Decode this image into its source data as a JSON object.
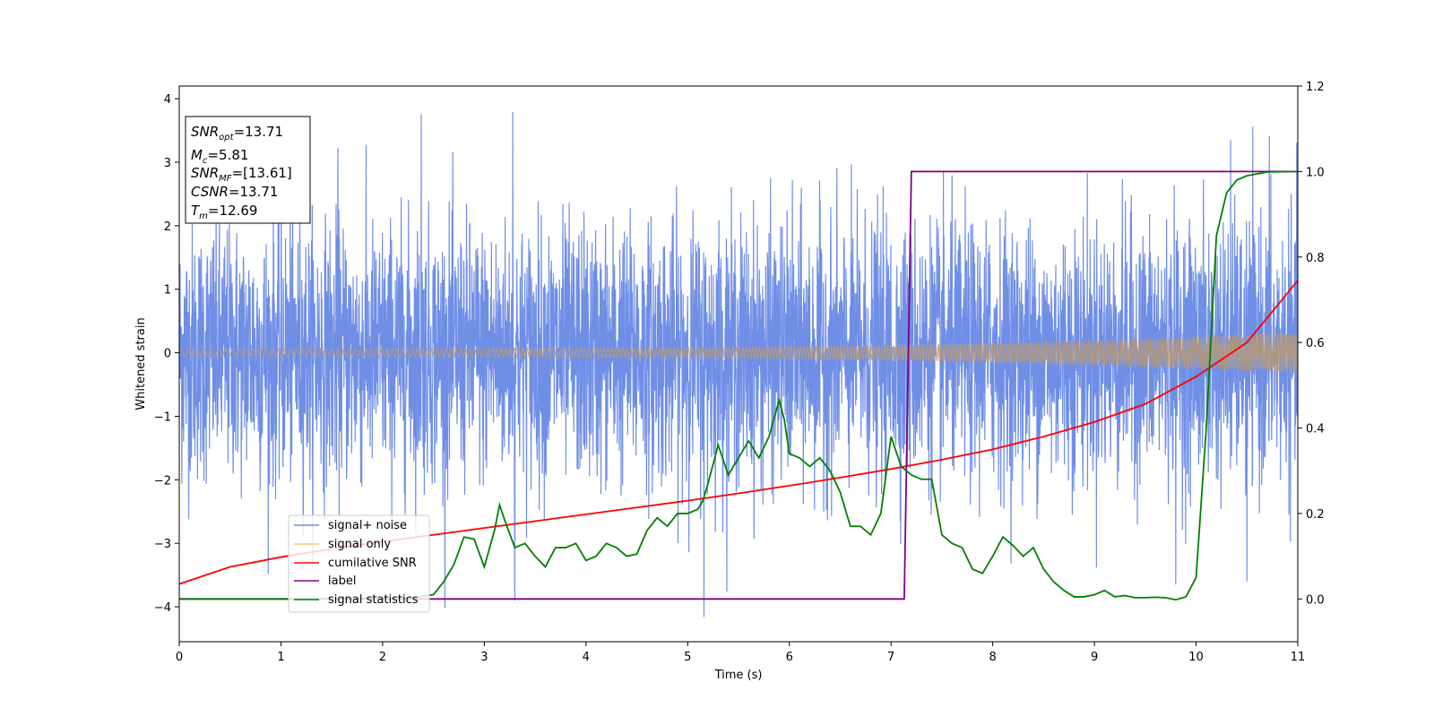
{
  "chart_data": {
    "type": "line",
    "xlabel": "Time (s)",
    "ylabel": "Whitened strain",
    "xlim": [
      0,
      11
    ],
    "ylim": [
      -4.55,
      4.2
    ],
    "y2lim": [
      -0.1,
      1.2
    ],
    "x_ticks": [
      "0",
      "1",
      "2",
      "3",
      "4",
      "5",
      "6",
      "7",
      "8",
      "9",
      "10",
      "11"
    ],
    "y_ticks": [
      "−4",
      "−3",
      "−2",
      "−1",
      "0",
      "1",
      "2",
      "3",
      "4"
    ],
    "y2_ticks": [
      "0.0",
      "0.2",
      "0.4",
      "0.6",
      "0.8",
      "1.0",
      "1.2"
    ],
    "grid": false,
    "legend": {
      "position": "lower-left",
      "entries": [
        "signal+ noise",
        "signal only",
        "cumilative SNR",
        "label",
        "signal statistics"
      ]
    },
    "colors": {
      "signal_noise": "#6f8ee6",
      "signal_only": "#f5c77a",
      "overlap": "#b89a78",
      "cumulative_snr": "#ff0000",
      "label": "#800080",
      "signal_statistics": "#008000"
    },
    "annotation": {
      "snr_opt": {
        "base": "SNR",
        "sub": "opt",
        "value": "=13.71"
      },
      "mc": {
        "base": "M",
        "sub": "c",
        "value": "=5.81"
      },
      "snr_mf": {
        "base": "SNR",
        "sub": "MF",
        "value": "=[13.61]"
      },
      "csnr": {
        "base": "CSNR",
        "sub": "",
        "value": "=13.71"
      },
      "tm": {
        "base": "T",
        "sub": "m",
        "value": "=12.69"
      }
    },
    "series": [
      {
        "name": "signal+ noise",
        "axis": "left",
        "description_free": true,
        "noise_sigma": 1.0,
        "peaks": [
          {
            "x": 2.38,
            "y": 3.76
          },
          {
            "x": 3.28,
            "y": 3.79
          },
          {
            "x": 1.56,
            "y": 3.23
          },
          {
            "x": 10.34,
            "y": 3.35
          },
          {
            "x": 10.72,
            "y": 3.41
          },
          {
            "x": 5.16,
            "y": -4.16
          },
          {
            "x": 9.8,
            "y": -3.65
          },
          {
            "x": 10.5,
            "y": -3.6
          },
          {
            "x": 3.3,
            "y": -3.9
          }
        ]
      },
      {
        "name": "signal only",
        "axis": "left",
        "amplitude_start": 0.06,
        "amplitude_end": 0.33,
        "amplitude_at": [
          [
            0,
            0.06
          ],
          [
            5,
            0.08
          ],
          [
            7,
            0.12
          ],
          [
            9,
            0.2
          ],
          [
            10,
            0.26
          ],
          [
            11,
            0.33
          ]
        ]
      },
      {
        "name": "cumilative SNR",
        "axis": "right",
        "x": [
          0,
          0.5,
          1,
          1.5,
          2,
          2.5,
          3,
          3.5,
          4,
          4.5,
          5,
          5.5,
          6,
          6.5,
          7,
          7.5,
          8,
          8.5,
          9,
          9.5,
          10,
          10.5,
          11
        ],
        "y": [
          0.035,
          0.075,
          0.098,
          0.117,
          0.134,
          0.15,
          0.166,
          0.182,
          0.198,
          0.214,
          0.23,
          0.247,
          0.265,
          0.284,
          0.304,
          0.326,
          0.35,
          0.38,
          0.414,
          0.456,
          0.52,
          0.6,
          0.745
        ]
      },
      {
        "name": "label",
        "axis": "right",
        "x": [
          0,
          7.13,
          7.2,
          11
        ],
        "y": [
          0,
          0,
          1,
          1
        ]
      },
      {
        "name": "signal statistics",
        "axis": "right",
        "x": [
          0,
          1,
          2,
          2.3,
          2.5,
          2.6,
          2.7,
          2.8,
          2.9,
          3.0,
          3.1,
          3.15,
          3.2,
          3.3,
          3.4,
          3.5,
          3.6,
          3.7,
          3.8,
          3.9,
          4.0,
          4.1,
          4.2,
          4.3,
          4.4,
          4.5,
          4.6,
          4.7,
          4.8,
          4.9,
          5.0,
          5.1,
          5.15,
          5.2,
          5.3,
          5.4,
          5.5,
          5.6,
          5.7,
          5.8,
          5.9,
          5.95,
          6.0,
          6.1,
          6.2,
          6.3,
          6.4,
          6.5,
          6.6,
          6.7,
          6.8,
          6.9,
          7.0,
          7.1,
          7.2,
          7.3,
          7.4,
          7.5,
          7.6,
          7.7,
          7.8,
          7.9,
          8.0,
          8.1,
          8.2,
          8.3,
          8.4,
          8.5,
          8.6,
          8.7,
          8.8,
          8.9,
          9.0,
          9.1,
          9.2,
          9.3,
          9.4,
          9.5,
          9.6,
          9.7,
          9.8,
          9.9,
          10.0,
          10.1,
          10.2,
          10.3,
          10.4,
          10.5,
          10.7,
          11
        ],
        "y": [
          0,
          0,
          0.001,
          0.003,
          0.01,
          0.04,
          0.08,
          0.145,
          0.14,
          0.075,
          0.16,
          0.22,
          0.185,
          0.12,
          0.13,
          0.1,
          0.075,
          0.12,
          0.12,
          0.13,
          0.09,
          0.1,
          0.13,
          0.12,
          0.1,
          0.105,
          0.16,
          0.19,
          0.17,
          0.2,
          0.2,
          0.21,
          0.23,
          0.27,
          0.36,
          0.29,
          0.33,
          0.37,
          0.33,
          0.38,
          0.465,
          0.42,
          0.34,
          0.33,
          0.31,
          0.33,
          0.3,
          0.25,
          0.17,
          0.17,
          0.15,
          0.2,
          0.38,
          0.31,
          0.29,
          0.28,
          0.28,
          0.15,
          0.13,
          0.12,
          0.07,
          0.06,
          0.1,
          0.145,
          0.125,
          0.1,
          0.12,
          0.07,
          0.04,
          0.02,
          0.005,
          0.005,
          0.01,
          0.02,
          0.005,
          0.008,
          0.003,
          0.003,
          0.004,
          0.003,
          -0.002,
          0.005,
          0.05,
          0.4,
          0.85,
          0.95,
          0.98,
          0.99,
          0.999,
          1.0
        ]
      }
    ]
  }
}
